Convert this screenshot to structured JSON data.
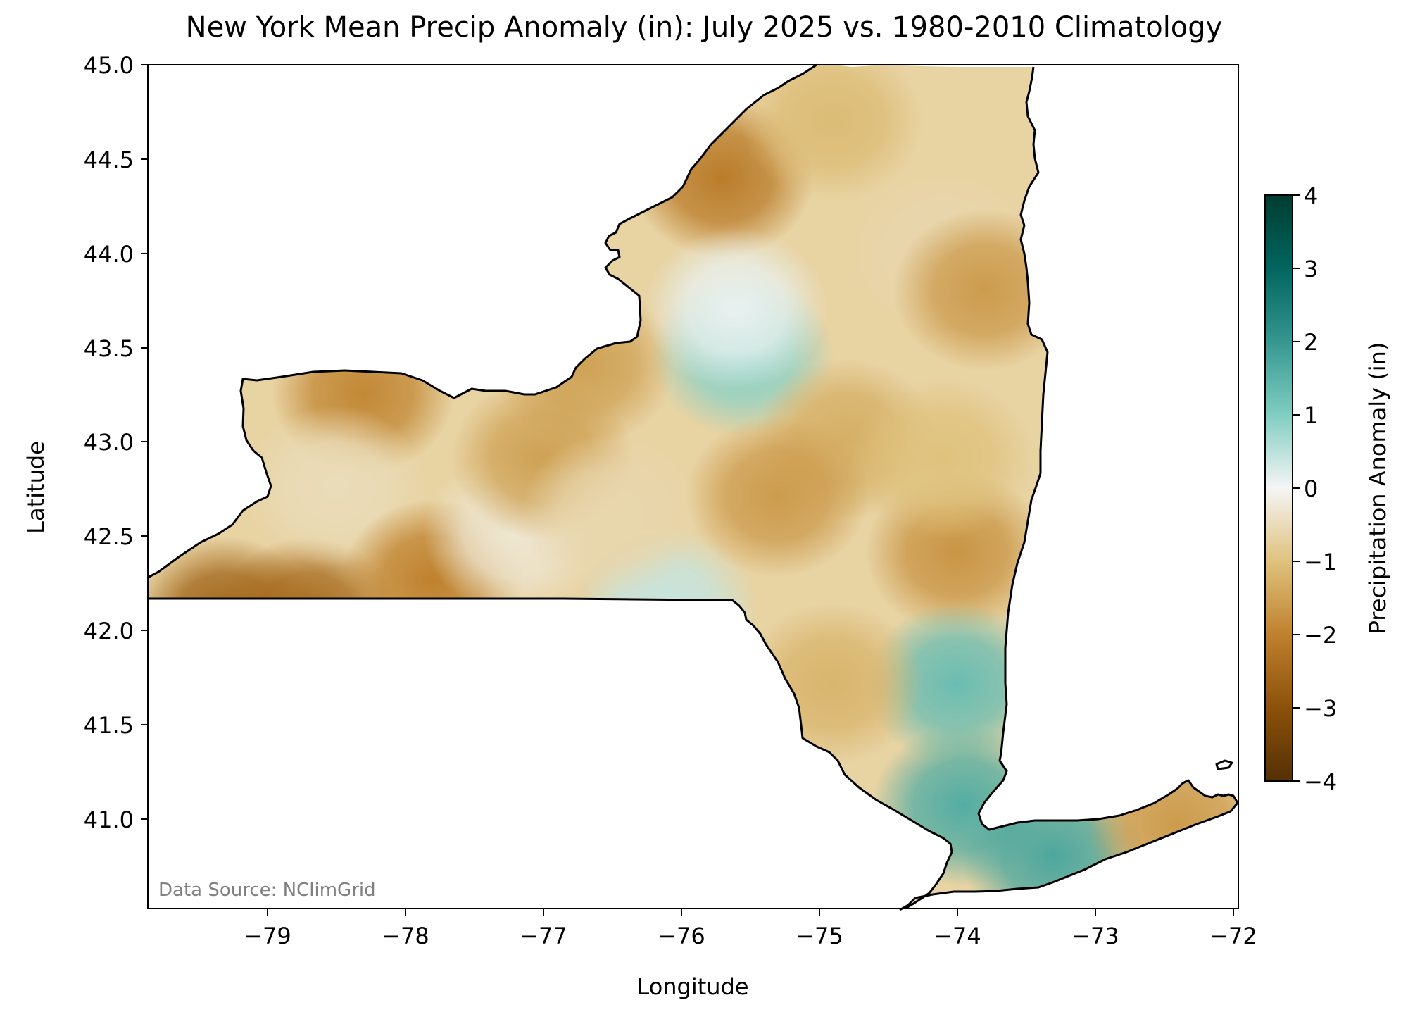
{
  "title": "New York Mean Precip Anomaly (in): July 2025 vs. 1980-2010 Climatology",
  "xlabel": "Longitude",
  "ylabel": "Latitude",
  "source_note": "Data Source: NClimGrid",
  "x_ticks": [
    "−79",
    "−78",
    "−77",
    "−76",
    "−75",
    "−74",
    "−73",
    "−72"
  ],
  "y_ticks": [
    "41.0",
    "41.5",
    "42.0",
    "42.5",
    "43.0",
    "43.5",
    "44.0",
    "44.5",
    "45.0"
  ],
  "colorbar": {
    "label": "Precipitation Anomaly (in)",
    "ticks": [
      "−4",
      "−3",
      "−2",
      "−1",
      "0",
      "1",
      "2",
      "3",
      "4"
    ],
    "range": [
      -4,
      4
    ],
    "colormap": "BrBG",
    "low_color": "#543005",
    "mid_color": "#f5f5f5",
    "high_color": "#003c30"
  },
  "chart_data": {
    "type": "heatmap",
    "title": "New York Mean Precip Anomaly (in): July 2025 vs. 1980-2010 Climatology",
    "xlabel": "Longitude",
    "ylabel": "Latitude",
    "xlim": [
      -79.76,
      -71.86
    ],
    "ylim": [
      40.5,
      45.0
    ],
    "value_range": [
      -4,
      4
    ],
    "units": "in",
    "x_ticks": [
      -79,
      -78,
      -77,
      -76,
      -75,
      -74,
      -73,
      -72
    ],
    "y_ticks": [
      41.0,
      41.5,
      42.0,
      42.5,
      43.0,
      43.5,
      44.0,
      44.5,
      45.0
    ],
    "region": "New York",
    "anomaly_features": [
      {
        "lon": -79.2,
        "lat": 42.05,
        "value": -2.6
      },
      {
        "lon": -78.6,
        "lat": 42.05,
        "value": -2.5
      },
      {
        "lon": -78.2,
        "lat": 43.25,
        "value": -1.9
      },
      {
        "lon": -78.4,
        "lat": 42.75,
        "value": -0.5
      },
      {
        "lon": -77.7,
        "lat": 42.25,
        "value": -2.0
      },
      {
        "lon": -77.1,
        "lat": 42.5,
        "value": -0.3
      },
      {
        "lon": -76.6,
        "lat": 43.4,
        "value": -1.5
      },
      {
        "lon": -76.0,
        "lat": 42.1,
        "value": 0.4
      },
      {
        "lon": -75.6,
        "lat": 44.4,
        "value": -2.1
      },
      {
        "lon": -75.45,
        "lat": 43.45,
        "value": 0.9
      },
      {
        "lon": -75.5,
        "lat": 43.7,
        "value": 0.1
      },
      {
        "lon": -74.8,
        "lat": 44.7,
        "value": -1.1
      },
      {
        "lon": -74.0,
        "lat": 44.0,
        "value": -0.6
      },
      {
        "lon": -73.7,
        "lat": 43.8,
        "value": -1.6
      },
      {
        "lon": -74.7,
        "lat": 43.0,
        "value": -1.3
      },
      {
        "lon": -75.2,
        "lat": 42.7,
        "value": -1.6
      },
      {
        "lon": -73.9,
        "lat": 42.4,
        "value": -1.7
      },
      {
        "lon": -74.0,
        "lat": 42.9,
        "value": -1.0
      },
      {
        "lon": -73.9,
        "lat": 41.7,
        "value": 1.3
      },
      {
        "lon": -74.8,
        "lat": 41.7,
        "value": -1.2
      },
      {
        "lon": -73.85,
        "lat": 41.05,
        "value": 1.6
      },
      {
        "lon": -73.2,
        "lat": 40.78,
        "value": 1.7
      },
      {
        "lon": -72.3,
        "lat": 40.95,
        "value": -1.6
      },
      {
        "lon": -76.9,
        "lat": 42.9,
        "value": -1.5
      },
      {
        "lon": -76.4,
        "lat": 42.6,
        "value": -0.6
      }
    ]
  }
}
